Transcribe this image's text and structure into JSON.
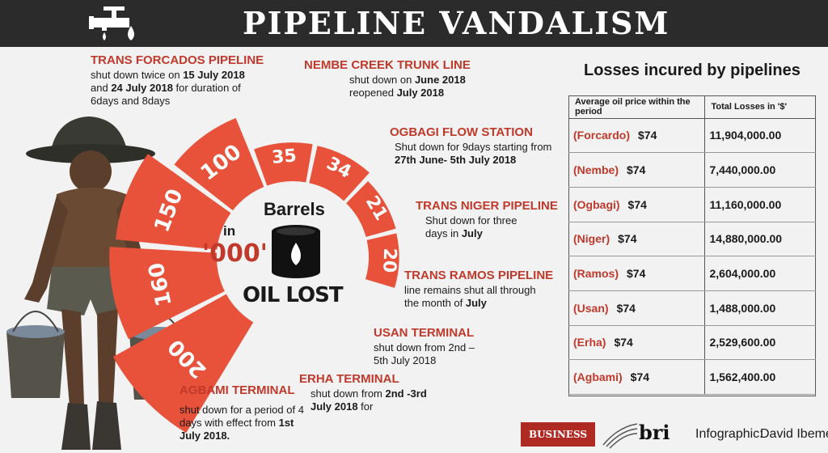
{
  "header": {
    "title": "PIPELINE VANDALISM",
    "icon": "valve-oil-drop-icon"
  },
  "center": {
    "barrels_label": "Barrels",
    "in_label": "in",
    "thousand_label": "'000'",
    "oil_lost_label": "OIL LOST",
    "icon": "oil-barrel-icon"
  },
  "chart_data": {
    "type": "bar",
    "categories": [
      "TRANS FORCADOS PIPELINE",
      "NEMBE CREEK TRUNK LINE",
      "OGBAGI FLOW STATION",
      "TRANS NIGER PIPELINE",
      "TRANS RAMOS PIPELINE",
      "USAN TERMINAL",
      "ERHA TERMINAL",
      "AGBAMI TERMINAL"
    ],
    "values": [
      200,
      160,
      150,
      100,
      35,
      34,
      21,
      20
    ],
    "value_labels": [
      "200",
      "160",
      "150",
      "100",
      "35",
      "34",
      "21",
      "20"
    ],
    "bar_color": "#e8513a"
  },
  "pipelines": [
    {
      "name": "TRANS FORCADOS PIPELINE",
      "desc_parts": [
        "shut down twice on ",
        "15 July 2018",
        " and ",
        "24 July 2018",
        " for duration of 6days and 8days"
      ]
    },
    {
      "name": "NEMBE CREEK TRUNK LINE",
      "desc_parts": [
        "shut down on ",
        "June 2018",
        " reopened ",
        "July 2018",
        ""
      ]
    },
    {
      "name": "OGBAGI FLOW STATION",
      "desc_parts": [
        "Shut down for 9days starting from ",
        "27th June- 5th July 2018",
        "",
        "",
        ""
      ]
    },
    {
      "name": "TRANS NIGER PIPELINE",
      "desc_parts": [
        "Shut down for three days in ",
        "July",
        "",
        "",
        ""
      ]
    },
    {
      "name": "TRANS RAMOS PIPELINE",
      "desc_parts": [
        "line  remains shut all through the month of ",
        "July",
        "",
        "",
        ""
      ]
    },
    {
      "name": "USAN TERMINAL",
      "desc_parts": [
        "shut  down  from  2nd –5th  July  2018",
        "",
        "",
        "",
        ""
      ]
    },
    {
      "name": "ERHA TERMINAL",
      "desc_parts": [
        "shut  down  from  ",
        "2nd -3rd July  2018",
        "  for",
        "",
        ""
      ]
    },
    {
      "name": "AGBAMI TERMINAL",
      "desc_parts": [
        "shut down for a period of 4 days with effect from ",
        "1st July 2018.",
        "",
        "",
        ""
      ]
    }
  ],
  "losses": {
    "title": "Losses incured by pipelines",
    "headers": [
      "Average oil price within the period",
      "Total Losses in '$'"
    ],
    "rows": [
      {
        "pipeline": "(Forcardo)",
        "price": "$74",
        "total": "11,904,000.00"
      },
      {
        "pipeline": "(Nembe)",
        "price": "$74",
        "total": "7,440,000.00"
      },
      {
        "pipeline": "(Ogbagi)",
        "price": "$74",
        "total": "11,160,000.00"
      },
      {
        "pipeline": "(Niger)",
        "price": "$74",
        "total": "14,880,000.00"
      },
      {
        "pipeline": "(Ramos)",
        "price": "$74",
        "total": "2,604,000.00"
      },
      {
        "pipeline": "(Usan)",
        "price": "$74",
        "total": "1,488,000.00"
      },
      {
        "pipeline": "(Erha)",
        "price": "$74",
        "total": "2,529,600.00"
      },
      {
        "pipeline": "(Agbami)",
        "price": "$74",
        "total": "1,562,400.00"
      }
    ]
  },
  "footer": {
    "brand1": "BUSINESS DAY",
    "brand2": "bri",
    "credit_label": "Infographic:",
    "credit_name": "David Ibemere"
  }
}
